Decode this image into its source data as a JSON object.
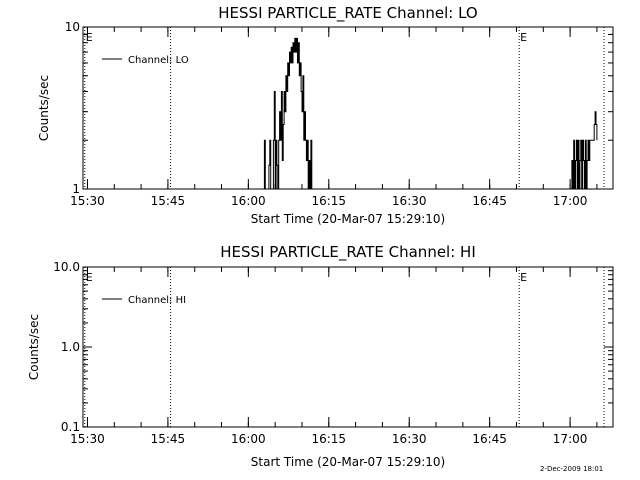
{
  "footer": "2-Dec-2009 18:01",
  "chart_data": [
    {
      "type": "line",
      "title": "HESSI PARTICLE_RATE Channel: LO",
      "xlabel": "Start Time (20-Mar-07 15:29:10)",
      "ylabel": "Counts/sec",
      "yscale": "log",
      "ylim": [
        1,
        10
      ],
      "y_ticks": [
        {
          "value": 1,
          "label": "1"
        },
        {
          "value": 10,
          "label": "10"
        }
      ],
      "xlim": [
        "15:29:10",
        "17:08:00"
      ],
      "x_ticks": [
        "15:30",
        "15:45",
        "16:00",
        "16:15",
        "16:30",
        "16:45",
        "17:00"
      ],
      "legend": {
        "position": "top-left",
        "entries": [
          "Channel: LO"
        ]
      },
      "event_markers": [
        {
          "time": "15:29:30",
          "label": "E"
        },
        {
          "time": "15:45:30",
          "label": ""
        },
        {
          "time": "16:50:30",
          "label": "E"
        },
        {
          "time": "17:06:20",
          "label": ""
        }
      ],
      "series": [
        {
          "name": "Channel: LO",
          "x": [
            "16:02:40",
            "16:03:00",
            "16:03:10",
            "16:03:20",
            "16:03:30",
            "16:03:40",
            "16:03:50",
            "16:04:00",
            "16:04:10",
            "16:04:30",
            "16:04:40",
            "16:04:50",
            "16:05:00",
            "16:05:10",
            "16:05:20",
            "16:05:30",
            "16:05:40",
            "16:05:50",
            "16:06:00",
            "16:06:10",
            "16:06:20",
            "16:06:30",
            "16:06:40",
            "16:06:50",
            "16:07:00",
            "16:07:10",
            "16:07:20",
            "16:07:30",
            "16:07:40",
            "16:07:50",
            "16:08:00",
            "16:08:10",
            "16:08:20",
            "16:08:30",
            "16:08:40",
            "16:08:50",
            "16:09:00",
            "16:09:10",
            "16:09:20",
            "16:09:30",
            "16:09:40",
            "16:09:50",
            "16:10:00",
            "16:10:10",
            "16:10:20",
            "16:10:30",
            "16:10:40",
            "16:10:50",
            "16:11:00",
            "16:11:10",
            "16:11:20",
            "16:11:30",
            "16:11:40",
            "16:11:50",
            "16:12:00",
            "16:12:10",
            "16:12:20",
            "16:12:30",
            "16:12:40",
            "16:12:50",
            "16:13:00",
            "16:13:10",
            "16:13:20",
            "16:13:30"
          ],
          "y": [
            1,
            2,
            1,
            1,
            1,
            1,
            1.4,
            2,
            1,
            1,
            2,
            4,
            1,
            2,
            1.4,
            1,
            2,
            3,
            2,
            4,
            1.5,
            2.5,
            4,
            3,
            5,
            4,
            6,
            5,
            7,
            6,
            7.5,
            6,
            8,
            7,
            8.5,
            7,
            8.5,
            6,
            8,
            5,
            6,
            4,
            3,
            5,
            2,
            3,
            2,
            1.5,
            2,
            1,
            1.5,
            1,
            2,
            1,
            1,
            1,
            1,
            1,
            1,
            1,
            1,
            1,
            1,
            1
          ]
        },
        {
          "name": "Channel: LO",
          "x": [
            "17:00:10",
            "17:00:20",
            "17:00:30",
            "17:00:40",
            "17:00:50",
            "17:01:00",
            "17:01:10",
            "17:01:20",
            "17:01:30",
            "17:01:40",
            "17:01:50",
            "17:02:00",
            "17:02:10",
            "17:02:20",
            "17:02:30",
            "17:02:40",
            "17:02:50",
            "17:03:00",
            "17:03:10",
            "17:03:20",
            "17:03:30",
            "17:03:40",
            "17:03:50",
            "17:04:00",
            "17:04:10",
            "17:04:20",
            "17:04:30",
            "17:04:40",
            "17:04:50",
            "17:05:00"
          ],
          "y": [
            1,
            1.5,
            1,
            2,
            1,
            1.5,
            2,
            1,
            2,
            1,
            1.5,
            2,
            1,
            2,
            1.5,
            1,
            2,
            1,
            1.5,
            2,
            1.5,
            2,
            2,
            2,
            2,
            2,
            2.5,
            3,
            2.5,
            2
          ]
        }
      ]
    },
    {
      "type": "line",
      "title": "HESSI PARTICLE_RATE Channel: HI",
      "xlabel": "Start Time (20-Mar-07 15:29:10)",
      "ylabel": "Counts/sec",
      "yscale": "log",
      "ylim": [
        0.1,
        10
      ],
      "y_ticks": [
        {
          "value": 0.1,
          "label": "0.1"
        },
        {
          "value": 1,
          "label": "1.0"
        },
        {
          "value": 10,
          "label": "10.0"
        }
      ],
      "xlim": [
        "15:29:10",
        "17:08:00"
      ],
      "x_ticks": [
        "15:30",
        "15:45",
        "16:00",
        "16:15",
        "16:30",
        "16:45",
        "17:00"
      ],
      "legend": {
        "position": "top-left",
        "entries": [
          "Channel: HI"
        ]
      },
      "event_markers": [
        {
          "time": "15:29:30",
          "label": "E"
        },
        {
          "time": "15:45:30",
          "label": ""
        },
        {
          "time": "16:50:30",
          "label": "E"
        },
        {
          "time": "17:06:20",
          "label": ""
        }
      ],
      "series": [
        {
          "name": "Channel: HI",
          "x": [],
          "y": []
        }
      ]
    }
  ]
}
